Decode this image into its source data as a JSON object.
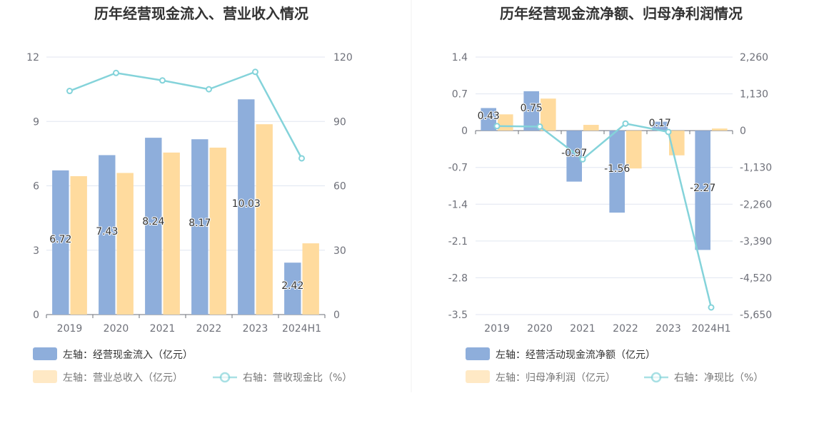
{
  "chart_data": [
    {
      "type": "bar",
      "title": "历年经营现金流入、营业收入情况",
      "categories": [
        "2019",
        "2020",
        "2021",
        "2022",
        "2023",
        "2024H1"
      ],
      "left_axis": {
        "min": 0,
        "max": 12,
        "ticks": [
          "0",
          "3",
          "6",
          "9",
          "12"
        ],
        "tick_values": [
          0,
          3,
          6,
          9,
          12
        ]
      },
      "right_axis": {
        "min": 0,
        "max": 120,
        "ticks": [
          "0",
          "30",
          "60",
          "90",
          "120"
        ],
        "tick_values": [
          0,
          30,
          60,
          90,
          120
        ]
      },
      "series": [
        {
          "name": "左轴：经营现金流入（亿元）",
          "type": "bar",
          "axis": "left",
          "color": "#8eaedb",
          "values": [
            6.72,
            7.43,
            8.24,
            8.17,
            10.03,
            2.42
          ],
          "labels": [
            "6.72",
            "7.43",
            "8.24",
            "8.17",
            "10.03",
            "2.42"
          ]
        },
        {
          "name": "左轴：营业总收入（亿元）",
          "type": "bar",
          "axis": "left",
          "color": "#ffdb9e",
          "values": [
            6.45,
            6.6,
            7.55,
            7.78,
            8.87,
            3.32
          ]
        },
        {
          "name": "右轴：营收现金比（%）",
          "type": "line",
          "axis": "right",
          "color": "#84d3da",
          "values": [
            104.2,
            112.6,
            109.1,
            105.0,
            113.1,
            72.8
          ]
        }
      ],
      "legend_position": "bottom-left",
      "grid": true
    },
    {
      "type": "bar",
      "title": "历年经营现金流净额、归母净利润情况",
      "categories": [
        "2019",
        "2020",
        "2021",
        "2022",
        "2023",
        "2024H1"
      ],
      "left_axis": {
        "min": -3.5,
        "max": 1.4,
        "ticks": [
          "-3.5",
          "-2.8",
          "-2.1",
          "-1.4",
          "-0.7",
          "0",
          "0.7",
          "1.4"
        ],
        "tick_values": [
          -3.5,
          -2.8,
          -2.1,
          -1.4,
          -0.7,
          0,
          0.7,
          1.4
        ]
      },
      "right_axis": {
        "min": -5650,
        "max": 2260,
        "ticks": [
          "-5,650",
          "-4,520",
          "-3,390",
          "-2,260",
          "-1,130",
          "0",
          "1,130",
          "2,260"
        ],
        "tick_values": [
          -5650,
          -4520,
          -3390,
          -2260,
          -1130,
          0,
          1130,
          2260
        ]
      },
      "series": [
        {
          "name": "左轴：经营活动现金流净额（亿元）",
          "type": "bar",
          "axis": "left",
          "color": "#8eaedb",
          "values": [
            0.43,
            0.75,
            -0.97,
            -1.56,
            0.17,
            -2.27
          ],
          "labels": [
            "0.43",
            "0.75",
            "-0.97",
            "-1.56",
            "0.17",
            "-2.27"
          ]
        },
        {
          "name": "左轴：归母净利润（亿元）",
          "type": "bar",
          "axis": "left",
          "color": "#ffdb9e",
          "values": [
            0.31,
            0.61,
            0.11,
            -0.72,
            -0.47,
            0.04
          ]
        },
        {
          "name": "右轴：净现比（%）",
          "type": "line",
          "axis": "right",
          "color": "#84d3da",
          "values": [
            139,
            123,
            -880,
            217,
            -40,
            -5430
          ]
        }
      ],
      "legend_position": "bottom-left",
      "grid": true
    }
  ]
}
